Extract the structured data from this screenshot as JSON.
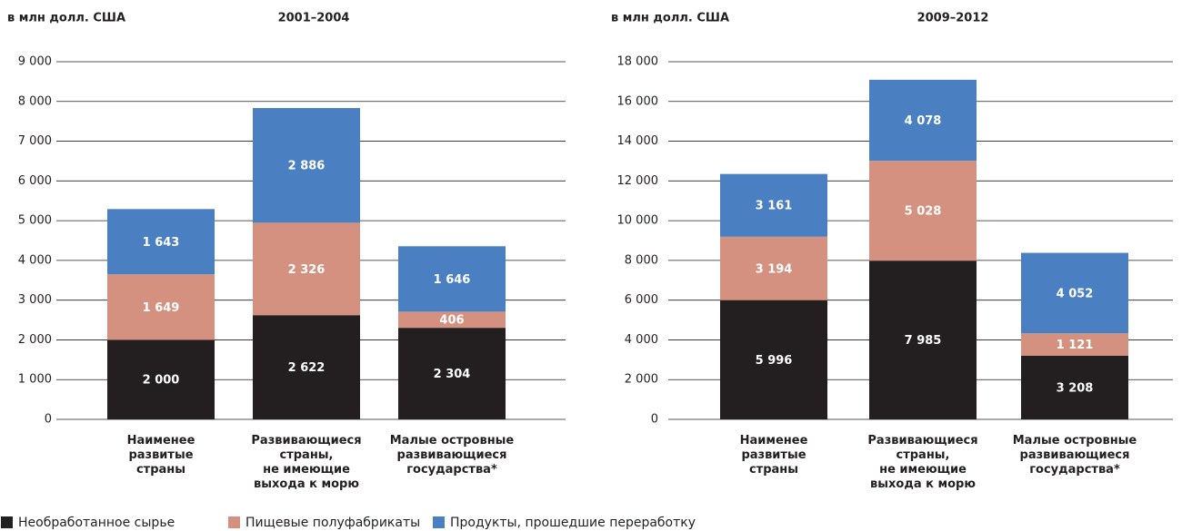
{
  "chart_data": [
    {
      "type": "stacked_bar",
      "title": "2001–2004",
      "ylabel": "в млн долл. США",
      "categories": [
        "Наименее\nразвитые\nстраны",
        "Развивающиеся\nстраны,\nне имеющие\nвыхода к морю",
        "Малые островные\nразвивающиеся\nгосударства*"
      ],
      "series": [
        {
          "name": "Необработанное сырье",
          "color": "#231f20",
          "values": [
            2000,
            2622,
            2304
          ],
          "value_labels": [
            "2 000",
            "2 622",
            "2 304"
          ]
        },
        {
          "name": "Пищевые полуфабрикаты",
          "color": "#d4917f",
          "values": [
            1649,
            2326,
            406
          ],
          "value_labels": [
            "1 649",
            "2 326",
            "406"
          ]
        },
        {
          "name": "Продукты, прошедшие переработку",
          "color": "#4a7fc1",
          "values": [
            1643,
            2886,
            1646
          ],
          "value_labels": [
            "1 643",
            "2 886",
            "1 646"
          ]
        }
      ],
      "ylim": [
        0,
        9000
      ],
      "yticks": [
        0,
        {
          "value": 1000,
          "label": "1 000"
        },
        {
          "value": 2000,
          "label": "2 000"
        },
        {
          "value": 3000,
          "label": "3 000"
        },
        {
          "value": 4000,
          "label": "4 000"
        },
        {
          "value": 5000,
          "label": "5 000"
        },
        {
          "value": 6000,
          "label": "6 000"
        },
        {
          "value": 7000,
          "label": "7 000"
        },
        {
          "value": 8000,
          "label": "8 000"
        },
        {
          "value": 9000,
          "label": "9 000"
        }
      ],
      "grid": true,
      "legend": "bottom-left"
    },
    {
      "type": "stacked_bar",
      "title": "2009–2012",
      "ylabel": "в млн долл. США",
      "categories": [
        "Наименее\nразвитые\nстраны",
        "Развивающиеся\nстраны,\nне имеющие\nвыхода к морю",
        "Малые островные\nразвивающиеся\nгосударства*"
      ],
      "series": [
        {
          "values": [
            5996,
            7985,
            3208
          ],
          "value_labels": [
            "5 996",
            "7 985",
            "3 208"
          ]
        },
        {
          "values": [
            3194,
            5028,
            1121
          ],
          "value_labels": [
            "3 194",
            "5 028",
            "1 121"
          ]
        },
        {
          "values": [
            3161,
            4078,
            4052
          ],
          "value_labels": [
            "3 161",
            "4 078",
            "4 052"
          ]
        }
      ],
      "ylim": [
        0,
        18000
      ],
      "yticks": [
        0,
        {
          "value": 2000,
          "label": "2 000"
        },
        {
          "value": 4000,
          "label": "4 000"
        },
        {
          "value": 6000,
          "label": "6 000"
        },
        {
          "value": 8000,
          "label": "8 000"
        },
        {
          "value": 10000,
          "label": "10 000"
        },
        {
          "value": 12000,
          "label": "12 000"
        },
        {
          "value": 14000,
          "label": "14 000"
        },
        {
          "value": 16000,
          "label": "16 000"
        },
        {
          "value": 18000,
          "label": "18 000"
        }
      ],
      "grid": true
    }
  ]
}
